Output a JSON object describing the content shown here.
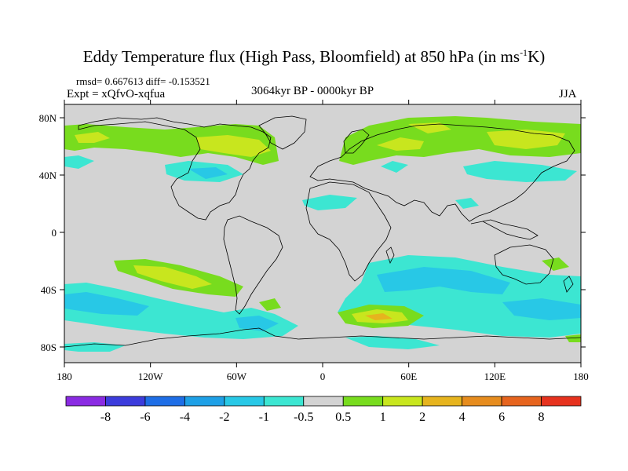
{
  "title": "Eddy Temperature flux (High Pass, Bloomfield) at 850 hPa (in ms",
  "title_sup": "-1",
  "title_end": "K)",
  "stats": "rmsd= 0.667613 diff= -0.153521",
  "expt": "Expt = xQfvO-xqfua",
  "period": "3064kyr BP - 0000kyr BP",
  "season": "JJA",
  "lat_ticks": [
    "80N",
    "40N",
    "0",
    "40S",
    "80S"
  ],
  "lon_ticks": [
    "180",
    "120W",
    "60W",
    "0",
    "60E",
    "120E",
    "180"
  ],
  "colorbar": {
    "labels": [
      "-8",
      "-6",
      "-4",
      "-2",
      "-1",
      "-0.5",
      "0.5",
      "1",
      "2",
      "4",
      "6",
      "8"
    ],
    "colors": [
      "#8a2be2",
      "#3c3cdc",
      "#1e6ee6",
      "#1ea0e6",
      "#28c8e6",
      "#3ce6d2",
      "#d3d3d3",
      "#78dc1e",
      "#c8e61e",
      "#e6b41e",
      "#e68c1e",
      "#e6641e",
      "#e6321e"
    ]
  },
  "palette": {
    "background": "#d3d3d3",
    "cyan": "#3ce6d2",
    "light_blue": "#28c8e6",
    "blue": "#1ea0e6",
    "green": "#78dc1e",
    "yellow_green": "#c8e61e",
    "orange": "#e6b41e"
  }
}
